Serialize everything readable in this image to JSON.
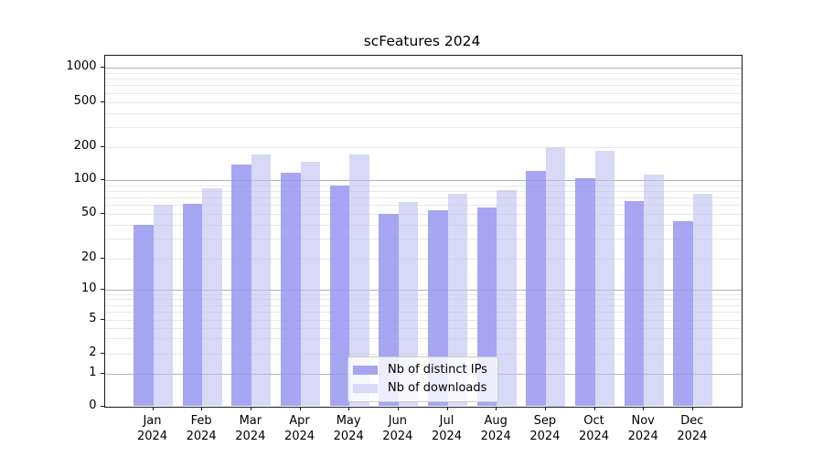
{
  "figure_title": "scFeatures 2024",
  "legend": {
    "items": [
      {
        "label": "Nb of distinct IPs",
        "color": "#a5a5f2"
      },
      {
        "label": "Nb of downloads",
        "color": "#d8d8f7"
      }
    ]
  },
  "chart_data": {
    "type": "bar",
    "title": "scFeatures 2024",
    "categories": [
      "Jan",
      "Feb",
      "Mar",
      "Apr",
      "May",
      "Jun",
      "Jul",
      "Aug",
      "Sep",
      "Oct",
      "Nov",
      "Dec"
    ],
    "year": "2024",
    "series": [
      {
        "name": "Nb of distinct IPs",
        "color": "#a5a5f2",
        "fill": "rgba(150,150,240,0.85)",
        "values": [
          40,
          61,
          138,
          116,
          90,
          50,
          54,
          57,
          121,
          103,
          65,
          43
        ]
      },
      {
        "name": "Nb of downloads",
        "color": "#d8d8f7",
        "fill": "rgba(190,190,242,0.6)",
        "values": [
          60,
          85,
          170,
          147,
          170,
          63,
          76,
          81,
          200,
          185,
          112,
          76
        ]
      }
    ],
    "y_ticks": [
      0,
      1,
      2,
      5,
      10,
      20,
      50,
      100,
      200,
      500,
      1000
    ],
    "y_scale": "log-like (compressed near zero, linear 0-1)",
    "ylim": [
      0,
      1300
    ],
    "grid": true,
    "grid_major_at": [
      1,
      10,
      100,
      1000
    ],
    "legend_position": "lower center"
  }
}
